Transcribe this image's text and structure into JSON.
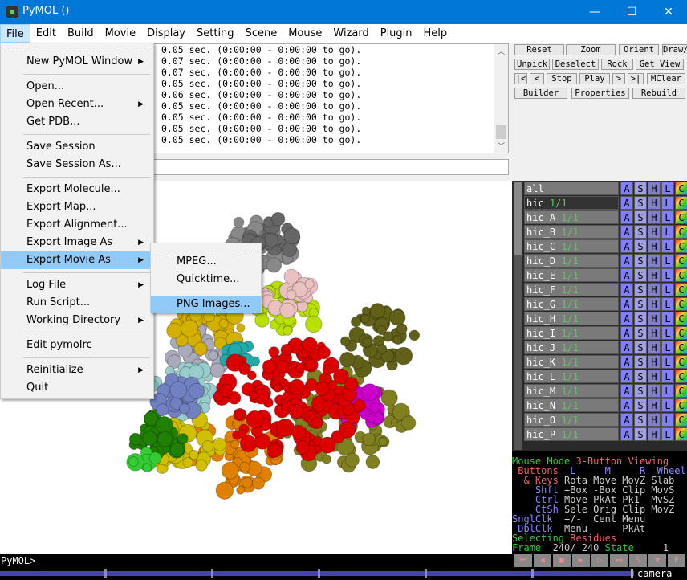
{
  "window": {
    "title": "PyMOL ()",
    "minimize": "—",
    "maximize": "☐",
    "close": "✕"
  },
  "menubar": [
    "File",
    "Edit",
    "Build",
    "Movie",
    "Display",
    "Setting",
    "Scene",
    "Mouse",
    "Wizard",
    "Plugin",
    "Help"
  ],
  "file_menu": [
    {
      "label": "New PyMOL Window",
      "sub": true
    },
    {
      "sep": true
    },
    {
      "label": "Open..."
    },
    {
      "label": "Open Recent...",
      "sub": true
    },
    {
      "label": "Get PDB..."
    },
    {
      "sep": true
    },
    {
      "label": "Save Session"
    },
    {
      "label": "Save Session As..."
    },
    {
      "sep": true
    },
    {
      "label": "Export Molecule..."
    },
    {
      "label": "Export Map..."
    },
    {
      "label": "Export Alignment..."
    },
    {
      "label": "Export Image As",
      "sub": true
    },
    {
      "label": "Export Movie As",
      "sub": true,
      "highlighted": true
    },
    {
      "sep": true
    },
    {
      "label": "Log File",
      "sub": true
    },
    {
      "label": "Run Script..."
    },
    {
      "label": "Working Directory",
      "sub": true
    },
    {
      "sep": true
    },
    {
      "label": "Edit pymolrc"
    },
    {
      "sep": true
    },
    {
      "label": "Reinitialize",
      "sub": true
    },
    {
      "label": "Quit"
    }
  ],
  "export_movie_submenu": [
    {
      "label": "MPEG..."
    },
    {
      "label": "Quicktime..."
    },
    {
      "sep": true
    },
    {
      "label": "PNG Images...",
      "highlighted": true
    }
  ],
  "log_lines": [
    "0.05 sec. (0:00:00 - 0:00:00 to go).",
    "0.07 sec. (0:00:00 - 0:00:00 to go).",
    "0.07 sec. (0:00:00 - 0:00:00 to go).",
    "0.05 sec. (0:00:00 - 0:00:00 to go).",
    "0.06 sec. (0:00:00 - 0:00:00 to go).",
    "0.05 sec. (0:00:00 - 0:00:00 to go).",
    "0.05 sec. (0:00:00 - 0:00:00 to go).",
    "0.05 sec. (0:00:00 - 0:00:00 to go).",
    "0.05 sec. (0:00:00 - 0:00:00 to go)."
  ],
  "command_input": "",
  "buttons": {
    "row1": [
      "Reset",
      "Zoom",
      "Orient",
      "Draw/Ray ▾"
    ],
    "row2": [
      "Unpick",
      "Deselect",
      "Rock",
      "Get View"
    ],
    "row3": [
      "|<",
      "<",
      "Stop",
      "Play",
      ">",
      ">|",
      "MClear"
    ],
    "row4": [
      "Builder",
      "Properties",
      "Rebuild"
    ]
  },
  "objects": [
    {
      "name": "all",
      "state": ""
    },
    {
      "name": "hic",
      "state": "1/1",
      "selected": true
    },
    {
      "name": "hic_A",
      "state": "1/1"
    },
    {
      "name": "hic_B",
      "state": "1/1"
    },
    {
      "name": "hic_C",
      "state": "1/1"
    },
    {
      "name": "hic_D",
      "state": "1/1"
    },
    {
      "name": "hic_E",
      "state": "1/1"
    },
    {
      "name": "hic_F",
      "state": "1/1"
    },
    {
      "name": "hic_G",
      "state": "1/1"
    },
    {
      "name": "hic_H",
      "state": "1/1"
    },
    {
      "name": "hic_I",
      "state": "1/1"
    },
    {
      "name": "hic_J",
      "state": "1/1"
    },
    {
      "name": "hic_K",
      "state": "1/1"
    },
    {
      "name": "hic_L",
      "state": "1/1"
    },
    {
      "name": "hic_M",
      "state": "1/1"
    },
    {
      "name": "hic_N",
      "state": "1/1"
    },
    {
      "name": "hic_O",
      "state": "1/1"
    },
    {
      "name": "hic_P",
      "state": "1/1"
    }
  ],
  "object_buttons": [
    "A",
    "S",
    "H",
    "L",
    "C"
  ],
  "mouse_mode": {
    "l1": [
      [
        "g",
        "Mouse Mode "
      ],
      [
        "r",
        "3-Button Viewing"
      ]
    ],
    "l2": [
      [
        "r",
        " Buttons  "
      ],
      [
        "b",
        "L     M     R  Wheel"
      ]
    ],
    "l3": [
      [
        "r",
        "  & Keys "
      ],
      [
        "w",
        "Rota Move MovZ Slab"
      ]
    ],
    "l4": [
      [
        "b",
        "    Shft "
      ],
      [
        "w",
        "+Box -Box Clip MovS"
      ]
    ],
    "l5": [
      [
        "b",
        "    Ctrl "
      ],
      [
        "w",
        "Move PkAt Pk1  MvSZ"
      ]
    ],
    "l6": [
      [
        "b",
        "    CtSh "
      ],
      [
        "w",
        "Sele Orig Clip MovZ"
      ]
    ],
    "l7": [
      [
        "b",
        "SnglClk  "
      ],
      [
        "w",
        "+/-  Cent Menu"
      ]
    ],
    "l8": [
      [
        "b",
        " DblClk  "
      ],
      [
        "w",
        "Menu  -   PkAt"
      ]
    ],
    "l9": [
      [
        "g",
        "Selecting "
      ],
      [
        "r",
        "Residues"
      ]
    ],
    "l10": [
      [
        "g",
        "Frame  "
      ],
      [
        "w",
        "240/ 240 "
      ],
      [
        "g",
        "State  "
      ],
      [
        "w",
        "   1"
      ]
    ]
  },
  "prompt": "PyMOL>_",
  "movie_controls": [
    "⏮",
    "◀",
    "■",
    "▶",
    "▷",
    "⏭",
    "S",
    "▼",
    "F"
  ],
  "camera_label": "camera",
  "frame": {
    "current": 240,
    "total": 240
  }
}
